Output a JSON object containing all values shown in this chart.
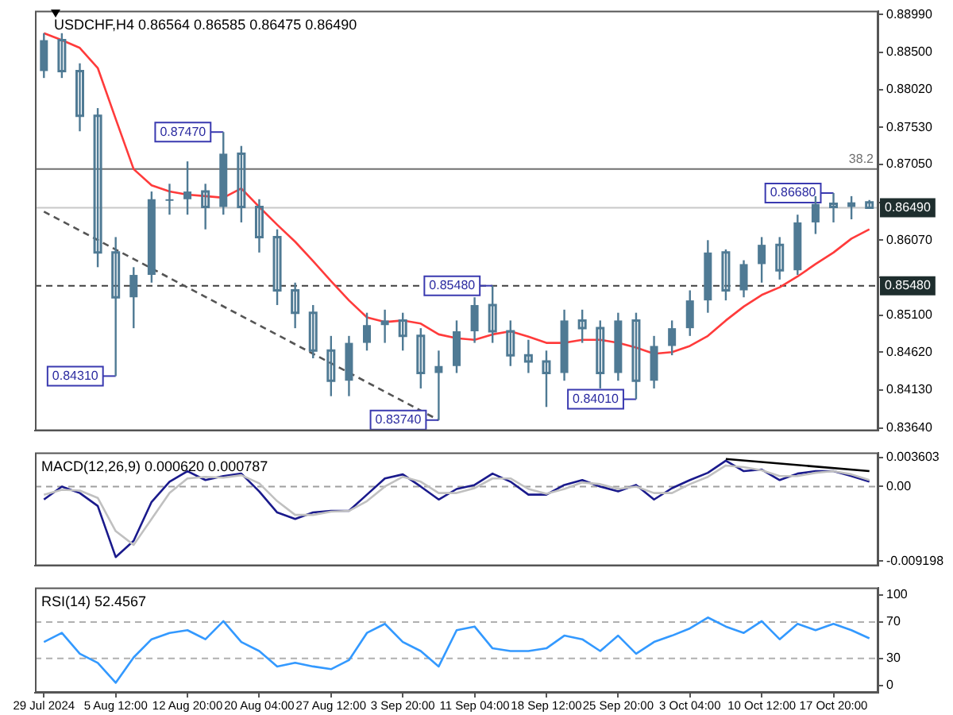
{
  "chart_data": [
    {
      "type": "candlestick",
      "title": "USDCHF,H4 0.86564 0.86585 0.86475 0.86490",
      "color": "#4f7a94",
      "ohlc": [
        [
          0.8826,
          0.8875,
          0.8817,
          0.8866
        ],
        [
          0.8866,
          0.8875,
          0.8817,
          0.8826
        ],
        [
          0.8826,
          0.8836,
          0.8748,
          0.8768
        ],
        [
          0.8768,
          0.8778,
          0.8572,
          0.8591
        ],
        [
          0.8591,
          0.8611,
          0.8431,
          0.8533
        ],
        [
          0.8533,
          0.8572,
          0.8493,
          0.8562
        ],
        [
          0.8562,
          0.867,
          0.8552,
          0.866
        ],
        [
          0.866,
          0.868,
          0.864,
          0.866
        ],
        [
          0.866,
          0.8709,
          0.864,
          0.867
        ],
        [
          0.867,
          0.868,
          0.8621,
          0.865
        ],
        [
          0.865,
          0.8747,
          0.864,
          0.8719
        ],
        [
          0.8719,
          0.8729,
          0.863,
          0.865
        ],
        [
          0.865,
          0.866,
          0.8591,
          0.8611
        ],
        [
          0.8611,
          0.8621,
          0.8523,
          0.8542
        ],
        [
          0.8542,
          0.8552,
          0.8493,
          0.8513
        ],
        [
          0.8513,
          0.8523,
          0.8454,
          0.8464
        ],
        [
          0.8464,
          0.8483,
          0.8405,
          0.8425
        ],
        [
          0.8425,
          0.8483,
          0.8405,
          0.8474
        ],
        [
          0.8474,
          0.8513,
          0.8464,
          0.8497
        ],
        [
          0.8497,
          0.8517,
          0.8474,
          0.8503
        ],
        [
          0.8503,
          0.8513,
          0.8464,
          0.8483
        ],
        [
          0.8483,
          0.8493,
          0.8415,
          0.8435
        ],
        [
          0.8435,
          0.8464,
          0.8374,
          0.8444
        ],
        [
          0.8444,
          0.8503,
          0.8435,
          0.8489
        ],
        [
          0.8489,
          0.8533,
          0.8474,
          0.8523
        ],
        [
          0.8523,
          0.8548,
          0.8474,
          0.8489
        ],
        [
          0.8489,
          0.8503,
          0.8444,
          0.8458
        ],
        [
          0.8458,
          0.8478,
          0.8435,
          0.845
        ],
        [
          0.845,
          0.8464,
          0.8391,
          0.8435
        ],
        [
          0.8435,
          0.8517,
          0.8425,
          0.8503
        ],
        [
          0.8503,
          0.8517,
          0.8474,
          0.8493
        ],
        [
          0.8493,
          0.8503,
          0.8415,
          0.8435
        ],
        [
          0.8435,
          0.8513,
          0.8425,
          0.8503
        ],
        [
          0.8503,
          0.8513,
          0.8401,
          0.8425
        ],
        [
          0.8425,
          0.8483,
          0.8415,
          0.847
        ],
        [
          0.847,
          0.8503,
          0.8458,
          0.8493
        ],
        [
          0.8493,
          0.8542,
          0.8483,
          0.8529
        ],
        [
          0.8529,
          0.8607,
          0.8513,
          0.8591
        ],
        [
          0.8591,
          0.8595,
          0.8529,
          0.8542
        ],
        [
          0.8542,
          0.8581,
          0.8533,
          0.8576
        ],
        [
          0.8576,
          0.8611,
          0.8552,
          0.8601
        ],
        [
          0.8601,
          0.8611,
          0.8556,
          0.8568
        ],
        [
          0.8568,
          0.864,
          0.8562,
          0.863
        ],
        [
          0.863,
          0.8664,
          0.8615,
          0.8654
        ],
        [
          0.8654,
          0.8668,
          0.863,
          0.865
        ],
        [
          0.865,
          0.8664,
          0.8634,
          0.8656
        ],
        [
          0.8656,
          0.8659,
          0.8648,
          0.8649
        ]
      ],
      "series": [
        {
          "type": "line",
          "color": "#ff3b3b",
          "values": [
            0.8875,
            0.8866,
            0.8856,
            0.883,
            0.8764,
            0.8699,
            0.8678,
            0.867,
            0.8666,
            0.8664,
            0.8662,
            0.8674,
            0.865,
            0.8627,
            0.8605,
            0.858,
            0.8554,
            0.8529,
            0.8507,
            0.8501,
            0.8503,
            0.8499,
            0.8485,
            0.848,
            0.8478,
            0.8485,
            0.8489,
            0.8482,
            0.8474,
            0.8474,
            0.8478,
            0.8478,
            0.8474,
            0.8468,
            0.846,
            0.8462,
            0.847,
            0.8483,
            0.8503,
            0.8521,
            0.8536,
            0.8546,
            0.856,
            0.8576,
            0.8591,
            0.8609,
            0.8621
          ]
        },
        {
          "type": "line",
          "color": "#555555",
          "line_style": "dashed",
          "values": [
            0.8644,
            null,
            null,
            null,
            null,
            null,
            null,
            null,
            null,
            null,
            null,
            null,
            null,
            null,
            null,
            null,
            null,
            null,
            null,
            null,
            null,
            null,
            0.8374,
            null,
            null,
            null,
            null,
            null,
            null,
            null,
            null,
            null,
            null,
            null,
            null,
            null,
            null,
            null,
            null,
            null,
            null,
            null,
            null,
            null,
            null,
            null,
            null
          ]
        }
      ],
      "ylim": [
        0.836,
        0.8904
      ],
      "yticks": [
        {
          "value": 0.8899,
          "label": "0.88990"
        },
        {
          "value": 0.885,
          "label": "0.88500"
        },
        {
          "value": 0.8802,
          "label": "0.88020"
        },
        {
          "value": 0.8753,
          "label": "0.87530"
        },
        {
          "value": 0.8705,
          "label": "0.87050"
        },
        {
          "value": 0.8656,
          "label": null
        },
        {
          "value": 0.8607,
          "label": "0.86070"
        },
        {
          "value": 0.8559,
          "label": null
        },
        {
          "value": 0.851,
          "label": "0.85100"
        },
        {
          "value": 0.8462,
          "label": "0.84620"
        },
        {
          "value": 0.8413,
          "label": "0.84130"
        },
        {
          "value": 0.8364,
          "label": "0.83640"
        }
      ],
      "ref_lines": [
        {
          "axis": "y",
          "value": 0.8699,
          "color": "#707070"
        },
        {
          "axis": "y",
          "value": 0.8649,
          "label": "0.86490",
          "color": "#c8c8c8"
        },
        {
          "axis": "y",
          "value": 0.8548,
          "label": "0.85480",
          "color": "#404040",
          "line_style": "dashed"
        }
      ],
      "annotations": [
        "38.2",
        "0.87470",
        "0.84310",
        "0.83740",
        "0.85480",
        "0.84010",
        "0.86680"
      ],
      "tick_labels": "y",
      "grid": false,
      "legend": false
    },
    {
      "type": "line",
      "title": "MACD(12,26,9) 0.000620 0.000787",
      "series": [
        {
          "color": "#c0c0c0",
          "values": [
            -0.001,
            -0.0004,
            -0.0005,
            -0.0014,
            -0.0055,
            -0.0072,
            -0.004,
            -0.0008,
            0.001,
            0.0012,
            0.0011,
            0.0014,
            0.0004,
            -0.0018,
            -0.0035,
            -0.0035,
            -0.0031,
            -0.003,
            -0.0018,
            0,
            0.0012,
            0.0006,
            -0.0008,
            -0.0008,
            -0.0002,
            0.001,
            0.001,
            -0.0003,
            -0.0009,
            -0.0003,
            0.0005,
            0.0003,
            -0.0003,
            0,
            -0.0008,
            -0.0008,
            0.0003,
            0.0012,
            0.0026,
            0.0024,
            0.002,
            0.0013,
            0.0013,
            0.0017,
            0.0019,
            0.0015,
            0.0008
          ]
        },
        {
          "color": "#1a1a8c",
          "values": [
            -0.0016,
            0,
            -0.0008,
            -0.0024,
            -0.0087,
            -0.0067,
            -0.0019,
            0.0006,
            0.0019,
            0.0008,
            0.0013,
            0.0016,
            -0.0006,
            -0.0032,
            -0.004,
            -0.0032,
            -0.003,
            -0.003,
            -0.001,
            0.001,
            0.0015,
            0,
            -0.0016,
            -0.0003,
            0.0002,
            0.0016,
            0.0006,
            -0.001,
            -0.001,
            0.0002,
            0.0008,
            0,
            -0.0006,
            0.0002,
            -0.0016,
            -0.0002,
            0.0008,
            0.0017,
            0.0032,
            0.0019,
            0.0021,
            0.0008,
            0.0016,
            0.0019,
            0.0019,
            0.0013,
            0.0006
          ]
        },
        {
          "color": "#000000",
          "values": [
            null,
            null,
            null,
            null,
            null,
            null,
            null,
            null,
            null,
            null,
            null,
            null,
            null,
            null,
            null,
            null,
            null,
            null,
            null,
            null,
            null,
            null,
            null,
            null,
            null,
            null,
            null,
            null,
            null,
            null,
            null,
            null,
            null,
            null,
            null,
            null,
            null,
            null,
            0.0034,
            null,
            null,
            null,
            null,
            null,
            null,
            null,
            0.0019
          ]
        }
      ],
      "ylim": [
        -0.0098,
        0.0042
      ],
      "yticks": [
        0.003603,
        {
          "value": 0,
          "label": "0.00"
        },
        -0.009198
      ],
      "ref_lines": [
        {
          "axis": "y",
          "value": 0,
          "color": "#a0a0a0",
          "line_style": "dashed"
        }
      ],
      "tick_labels": "y",
      "grid": false,
      "legend": false
    },
    {
      "type": "line",
      "title": "RSI(14) 52.4567",
      "categories": [
        "29 Jul 2024",
        null,
        null,
        null,
        "5 Aug 12:00",
        null,
        null,
        null,
        "12 Aug 20:00",
        null,
        null,
        null,
        "20 Aug 04:00",
        null,
        null,
        null,
        "27 Aug 12:00",
        null,
        null,
        null,
        "3 Sep 20:00",
        null,
        null,
        null,
        "11 Sep 04:00",
        null,
        null,
        null,
        "18 Sep 12:00",
        null,
        null,
        null,
        "25 Sep 20:00",
        null,
        null,
        null,
        "3 Oct 04:00",
        null,
        null,
        null,
        "10 Oct 12:00",
        null,
        null,
        null,
        "17 Oct 20:00",
        null,
        null
      ],
      "series": [
        {
          "color": "#3399ff",
          "values": [
            48,
            58,
            35,
            25,
            3,
            31,
            51,
            58,
            61,
            51,
            71,
            48,
            38,
            21,
            25,
            21,
            18,
            28,
            58,
            68,
            48,
            38,
            21,
            61,
            65,
            41,
            38,
            38,
            41,
            55,
            51,
            38,
            55,
            35,
            48,
            55,
            63,
            75,
            65,
            58,
            71,
            51,
            68,
            61,
            68,
            61,
            52
          ]
        }
      ],
      "ylim": [
        -8,
        108
      ],
      "yticks": [
        0,
        30,
        70,
        100
      ],
      "ref_lines": [
        {
          "axis": "y",
          "value": 30,
          "color": "#b0b0b0",
          "line_style": "dashed"
        },
        {
          "axis": "y",
          "value": 70,
          "color": "#b0b0b0",
          "line_style": "dashed"
        }
      ],
      "grid": false,
      "legend": false
    }
  ]
}
